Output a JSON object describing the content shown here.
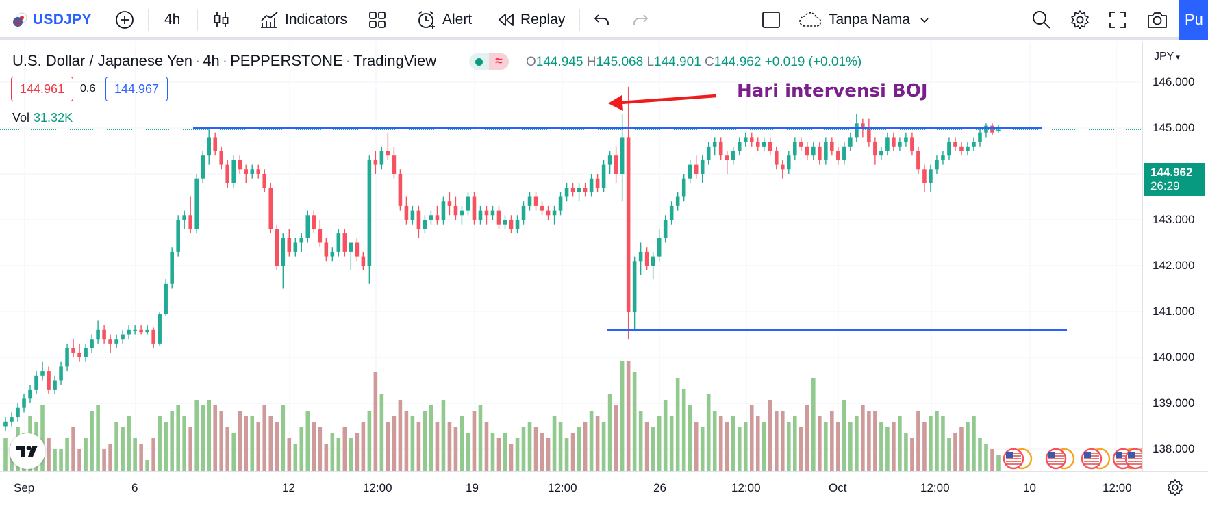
{
  "toolbar": {
    "symbol": "USDJPY",
    "interval": "4h",
    "indicators_label": "Indicators",
    "alert_label": "Alert",
    "replay_label": "Replay",
    "layout_name": "Tanpa Nama",
    "publish_label": "Pu"
  },
  "legend": {
    "title": "U.S. Dollar / Japanese Yen",
    "interval": "4h",
    "exchange": "PEPPERSTONE",
    "source": "TradingView",
    "open_label": "O",
    "open": "144.945",
    "high_label": "H",
    "high": "145.068",
    "low_label": "L",
    "low": "144.901",
    "close_label": "C",
    "close": "144.962",
    "change": "+0.019 (+0.01%)",
    "bid": "144.961",
    "spread": "0.6",
    "ask": "144.967",
    "vol_label": "Vol",
    "vol_value": "31.32K"
  },
  "annotation": {
    "text": "Hari intervensi BOJ"
  },
  "price_scale": {
    "currency": "JPY",
    "ticks": [
      "146.000",
      "145.000",
      "144.000",
      "143.000",
      "142.000",
      "141.000",
      "140.000",
      "139.000",
      "138.000"
    ],
    "last_price": "144.962",
    "countdown": "26:29"
  },
  "time_scale": {
    "ticks": [
      "Sep",
      "6",
      "12",
      "12:00",
      "19",
      "12:00",
      "26",
      "12:00",
      "Oct",
      "12:00",
      "10",
      "12:00"
    ]
  },
  "chart_data": {
    "type": "candlestick",
    "symbol": "USDJPY",
    "interval": "4h",
    "price_range": [
      137.7,
      146.3
    ],
    "resistance_level": 145.0,
    "support_level": 140.6,
    "candles_ohlc": [
      [
        138.5,
        138.7,
        138.4,
        138.6
      ],
      [
        138.6,
        138.8,
        138.5,
        138.7
      ],
      [
        138.7,
        139.0,
        138.6,
        138.9
      ],
      [
        138.9,
        139.2,
        138.8,
        139.1
      ],
      [
        139.1,
        139.4,
        139.0,
        139.3
      ],
      [
        139.3,
        139.7,
        139.2,
        139.6
      ],
      [
        139.6,
        139.9,
        139.5,
        139.7
      ],
      [
        139.7,
        139.8,
        139.2,
        139.3
      ],
      [
        139.3,
        139.6,
        139.2,
        139.5
      ],
      [
        139.5,
        139.9,
        139.4,
        139.8
      ],
      [
        139.8,
        140.3,
        139.7,
        140.2
      ],
      [
        140.2,
        140.4,
        140.0,
        140.1
      ],
      [
        140.1,
        140.3,
        139.9,
        140.0
      ],
      [
        140.0,
        140.3,
        139.9,
        140.2
      ],
      [
        140.2,
        140.5,
        140.1,
        140.4
      ],
      [
        140.4,
        140.8,
        140.3,
        140.6
      ],
      [
        140.6,
        140.7,
        140.3,
        140.4
      ],
      [
        140.4,
        140.5,
        140.1,
        140.3
      ],
      [
        140.3,
        140.5,
        140.2,
        140.4
      ],
      [
        140.4,
        140.6,
        140.3,
        140.5
      ],
      [
        140.5,
        140.7,
        140.4,
        140.6
      ],
      [
        140.6,
        140.7,
        140.5,
        140.6
      ],
      [
        140.6,
        140.7,
        140.5,
        140.55
      ],
      [
        140.55,
        140.7,
        140.5,
        140.6
      ],
      [
        140.6,
        140.65,
        140.2,
        140.3
      ],
      [
        140.3,
        141.0,
        140.25,
        140.95
      ],
      [
        140.95,
        141.7,
        140.9,
        141.6
      ],
      [
        141.6,
        142.4,
        141.5,
        142.3
      ],
      [
        142.3,
        143.1,
        142.2,
        143.0
      ],
      [
        143.0,
        143.2,
        142.8,
        143.1
      ],
      [
        143.1,
        143.5,
        142.7,
        142.8
      ],
      [
        142.8,
        144.0,
        142.7,
        143.9
      ],
      [
        143.9,
        144.5,
        143.8,
        144.4
      ],
      [
        144.4,
        145.0,
        144.2,
        144.8
      ],
      [
        144.8,
        144.9,
        144.4,
        144.5
      ],
      [
        144.5,
        144.6,
        144.1,
        144.2
      ],
      [
        144.2,
        144.3,
        143.7,
        143.8
      ],
      [
        143.8,
        144.4,
        143.7,
        144.3
      ],
      [
        144.3,
        144.4,
        144.0,
        144.1
      ],
      [
        144.1,
        144.2,
        143.8,
        144.0
      ],
      [
        144.0,
        144.2,
        143.9,
        144.1
      ],
      [
        144.1,
        144.2,
        143.9,
        144.0
      ],
      [
        144.0,
        144.1,
        143.6,
        143.7
      ],
      [
        143.7,
        143.8,
        142.7,
        142.8
      ],
      [
        142.8,
        142.9,
        141.9,
        142.0
      ],
      [
        142.0,
        142.7,
        141.5,
        142.6
      ],
      [
        142.6,
        142.8,
        142.2,
        142.3
      ],
      [
        142.3,
        142.6,
        142.2,
        142.5
      ],
      [
        142.5,
        142.7,
        142.3,
        142.6
      ],
      [
        142.6,
        143.2,
        142.5,
        143.1
      ],
      [
        143.1,
        143.2,
        142.7,
        142.8
      ],
      [
        142.8,
        143.0,
        142.4,
        142.5
      ],
      [
        142.5,
        142.6,
        142.1,
        142.2
      ],
      [
        142.2,
        142.4,
        142.1,
        142.3
      ],
      [
        142.3,
        142.8,
        142.2,
        142.7
      ],
      [
        142.7,
        142.8,
        142.2,
        142.3
      ],
      [
        142.3,
        142.5,
        141.9,
        142.5
      ],
      [
        142.5,
        142.6,
        142.1,
        142.2
      ],
      [
        142.2,
        142.3,
        141.9,
        142.0
      ],
      [
        142.0,
        144.4,
        141.6,
        144.3
      ],
      [
        144.3,
        144.5,
        144.0,
        144.2
      ],
      [
        144.2,
        144.6,
        144.1,
        144.5
      ],
      [
        144.5,
        144.9,
        144.3,
        144.4
      ],
      [
        144.4,
        144.6,
        143.9,
        144.0
      ],
      [
        144.0,
        144.1,
        143.2,
        143.3
      ],
      [
        143.3,
        143.5,
        142.9,
        143.0
      ],
      [
        143.0,
        143.3,
        142.9,
        143.2
      ],
      [
        143.2,
        143.3,
        142.6,
        142.8
      ],
      [
        142.8,
        143.1,
        142.7,
        143.0
      ],
      [
        143.0,
        143.2,
        142.9,
        143.1
      ],
      [
        143.1,
        143.3,
        142.9,
        143.0
      ],
      [
        143.0,
        143.5,
        142.9,
        143.4
      ],
      [
        143.4,
        143.6,
        143.1,
        143.3
      ],
      [
        143.3,
        143.5,
        143.0,
        143.1
      ],
      [
        143.1,
        143.3,
        142.9,
        143.2
      ],
      [
        143.2,
        143.6,
        143.1,
        143.5
      ],
      [
        143.5,
        143.6,
        142.9,
        143.0
      ],
      [
        143.0,
        143.3,
        142.9,
        143.2
      ],
      [
        143.2,
        143.3,
        142.9,
        143.1
      ],
      [
        143.1,
        143.3,
        143.0,
        143.2
      ],
      [
        143.2,
        143.3,
        142.8,
        142.9
      ],
      [
        142.9,
        143.1,
        142.8,
        143.0
      ],
      [
        143.0,
        143.1,
        142.7,
        142.8
      ],
      [
        142.8,
        143.1,
        142.7,
        143.0
      ],
      [
        143.0,
        143.4,
        142.9,
        143.3
      ],
      [
        143.3,
        143.6,
        143.2,
        143.5
      ],
      [
        143.5,
        143.6,
        143.2,
        143.3
      ],
      [
        143.3,
        143.4,
        143.1,
        143.2
      ],
      [
        143.2,
        143.3,
        143.0,
        143.1
      ],
      [
        143.1,
        143.3,
        142.9,
        143.2
      ],
      [
        143.2,
        143.6,
        143.1,
        143.5
      ],
      [
        143.5,
        143.8,
        143.4,
        143.7
      ],
      [
        143.7,
        143.8,
        143.5,
        143.6
      ],
      [
        143.6,
        143.8,
        143.4,
        143.7
      ],
      [
        143.7,
        143.8,
        143.5,
        143.6
      ],
      [
        143.6,
        144.0,
        143.5,
        143.9
      ],
      [
        143.9,
        144.0,
        143.6,
        143.7
      ],
      [
        143.7,
        144.3,
        143.6,
        144.2
      ],
      [
        144.2,
        144.5,
        144.0,
        144.4
      ],
      [
        144.4,
        144.6,
        143.8,
        144.0
      ],
      [
        144.0,
        145.3,
        143.4,
        144.8
      ],
      [
        144.8,
        145.9,
        140.4,
        141.0
      ],
      [
        141.0,
        142.2,
        140.6,
        142.1
      ],
      [
        142.1,
        142.5,
        141.8,
        142.3
      ],
      [
        142.3,
        142.4,
        141.9,
        142.0
      ],
      [
        142.0,
        142.3,
        141.7,
        142.2
      ],
      [
        142.2,
        142.8,
        142.1,
        142.6
      ],
      [
        142.6,
        143.1,
        142.5,
        143.0
      ],
      [
        143.0,
        143.4,
        142.9,
        143.3
      ],
      [
        143.3,
        143.6,
        143.2,
        143.5
      ],
      [
        143.5,
        144.0,
        143.4,
        143.9
      ],
      [
        143.9,
        144.3,
        143.8,
        144.2
      ],
      [
        144.2,
        144.4,
        143.9,
        144.0
      ],
      [
        144.0,
        144.4,
        143.8,
        144.3
      ],
      [
        144.3,
        144.7,
        144.2,
        144.6
      ],
      [
        144.6,
        144.8,
        144.4,
        144.7
      ],
      [
        144.7,
        144.8,
        144.3,
        144.4
      ],
      [
        144.4,
        144.5,
        144.0,
        144.3
      ],
      [
        144.3,
        144.6,
        144.2,
        144.5
      ],
      [
        144.5,
        144.8,
        144.4,
        144.7
      ],
      [
        144.7,
        144.9,
        144.6,
        144.8
      ],
      [
        144.8,
        144.9,
        144.6,
        144.7
      ],
      [
        144.7,
        144.8,
        144.5,
        144.6
      ],
      [
        144.6,
        144.8,
        144.5,
        144.7
      ],
      [
        144.7,
        144.8,
        144.4,
        144.5
      ],
      [
        144.5,
        144.6,
        144.1,
        144.2
      ],
      [
        144.2,
        144.3,
        143.9,
        144.1
      ],
      [
        144.1,
        144.5,
        144.0,
        144.4
      ],
      [
        144.4,
        144.8,
        144.3,
        144.7
      ],
      [
        144.7,
        144.8,
        144.5,
        144.6
      ],
      [
        144.6,
        144.7,
        144.3,
        144.4
      ],
      [
        144.4,
        144.7,
        144.3,
        144.6
      ],
      [
        144.6,
        144.7,
        144.2,
        144.3
      ],
      [
        144.3,
        144.8,
        144.2,
        144.7
      ],
      [
        144.7,
        144.8,
        144.4,
        144.5
      ],
      [
        144.5,
        144.6,
        144.2,
        144.3
      ],
      [
        144.3,
        144.7,
        144.2,
        144.6
      ],
      [
        144.6,
        144.9,
        144.5,
        144.8
      ],
      [
        144.8,
        145.3,
        144.7,
        145.1
      ],
      [
        145.1,
        145.2,
        144.8,
        145.0
      ],
      [
        145.0,
        145.2,
        144.6,
        144.7
      ],
      [
        144.7,
        144.8,
        144.2,
        144.4
      ],
      [
        144.4,
        144.6,
        144.3,
        144.5
      ],
      [
        144.5,
        144.9,
        144.4,
        144.8
      ],
      [
        144.8,
        144.9,
        144.5,
        144.6
      ],
      [
        144.6,
        144.8,
        144.5,
        144.7
      ],
      [
        144.7,
        144.9,
        144.6,
        144.8
      ],
      [
        144.8,
        144.9,
        144.4,
        144.5
      ],
      [
        144.5,
        144.6,
        144.0,
        144.1
      ],
      [
        144.1,
        144.2,
        143.6,
        143.8
      ],
      [
        143.8,
        144.2,
        143.6,
        144.1
      ],
      [
        144.1,
        144.4,
        144.0,
        144.3
      ],
      [
        144.3,
        144.5,
        144.2,
        144.4
      ],
      [
        144.4,
        144.8,
        144.3,
        144.7
      ],
      [
        144.7,
        144.8,
        144.5,
        144.6
      ],
      [
        144.6,
        144.7,
        144.4,
        144.5
      ],
      [
        144.5,
        144.7,
        144.4,
        144.6
      ],
      [
        144.6,
        144.8,
        144.5,
        144.7
      ],
      [
        144.7,
        145.0,
        144.6,
        144.9
      ],
      [
        144.9,
        145.1,
        144.8,
        145.05
      ],
      [
        145.05,
        145.1,
        144.85,
        144.9
      ],
      [
        144.945,
        145.068,
        144.901,
        144.962
      ]
    ],
    "volume_relative": [
      0.3,
      0.25,
      0.4,
      0.35,
      0.5,
      0.45,
      0.6,
      0.3,
      0.2,
      0.2,
      0.3,
      0.4,
      0.2,
      0.3,
      0.55,
      0.6,
      0.2,
      0.25,
      0.45,
      0.4,
      0.5,
      0.3,
      0.25,
      0.1,
      0.3,
      0.5,
      0.45,
      0.55,
      0.6,
      0.5,
      0.4,
      0.65,
      0.6,
      0.65,
      0.6,
      0.55,
      0.4,
      0.35,
      0.55,
      0.5,
      0.5,
      0.45,
      0.6,
      0.5,
      0.45,
      0.6,
      0.3,
      0.25,
      0.4,
      0.55,
      0.45,
      0.4,
      0.25,
      0.35,
      0.3,
      0.4,
      0.3,
      0.35,
      0.45,
      0.55,
      0.9,
      0.7,
      0.45,
      0.5,
      0.65,
      0.55,
      0.5,
      0.45,
      0.55,
      0.6,
      0.45,
      0.65,
      0.45,
      0.4,
      0.5,
      0.35,
      0.55,
      0.6,
      0.45,
      0.35,
      0.3,
      0.35,
      0.25,
      0.3,
      0.4,
      0.45,
      0.4,
      0.35,
      0.3,
      0.5,
      0.45,
      0.3,
      0.35,
      0.4,
      0.45,
      0.55,
      0.5,
      0.45,
      0.7,
      0.6,
      1.0,
      1.0,
      0.9,
      0.55,
      0.45,
      0.4,
      0.5,
      0.65,
      0.5,
      0.85,
      0.75,
      0.6,
      0.45,
      0.4,
      0.7,
      0.55,
      0.5,
      0.45,
      0.5,
      0.4,
      0.45,
      0.6,
      0.5,
      0.45,
      0.65,
      0.55,
      0.55,
      0.45,
      0.5,
      0.4,
      0.6,
      0.85,
      0.5,
      0.45,
      0.55,
      0.45,
      0.65,
      0.45,
      0.5,
      0.6,
      0.55,
      0.55,
      0.45,
      0.4,
      0.45,
      0.5,
      0.35,
      0.3,
      0.55,
      0.45,
      0.5,
      0.55,
      0.5,
      0.3,
      0.35,
      0.4,
      0.45,
      0.5,
      0.3,
      0.25,
      0.2,
      0.15
    ],
    "annotations": [
      "Hari intervensi BOJ"
    ]
  }
}
